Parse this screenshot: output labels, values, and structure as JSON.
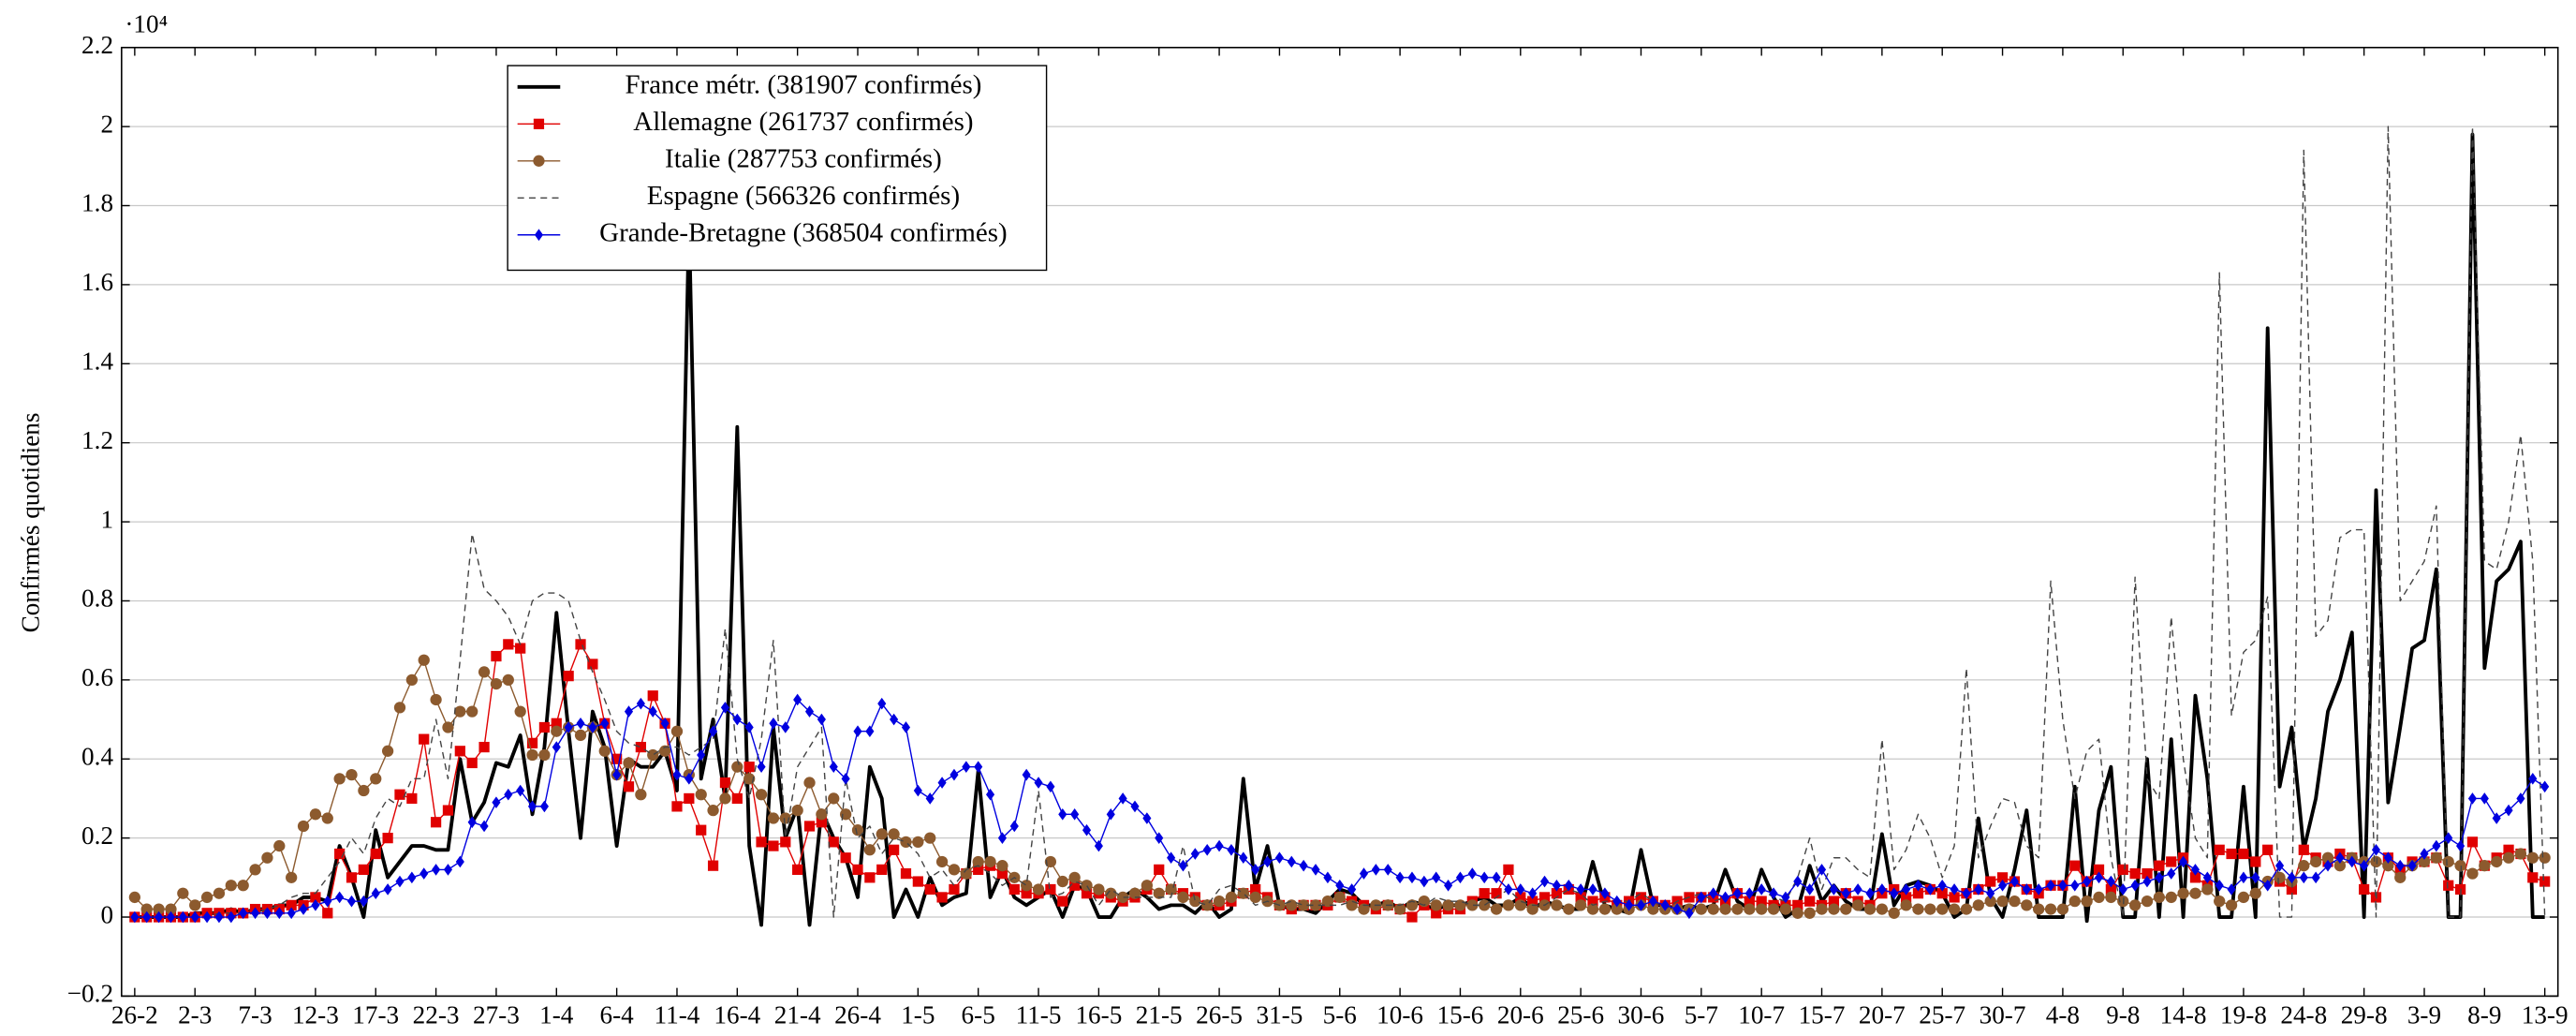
{
  "chart_data": {
    "type": "line",
    "y_label": "Confirmés quotidiens",
    "y_multiplier": "·10⁴",
    "ylim": [
      -0.2,
      2.2
    ],
    "yticks": [
      {
        "value": -0.2,
        "label": "−0.2"
      },
      0,
      0.2,
      0.4,
      0.6,
      0.8,
      1,
      1.2,
      1.4,
      1.6,
      1.8,
      2,
      2.2
    ],
    "grid": true,
    "legend": "upper left",
    "categories": [
      "26-2",
      null,
      null,
      null,
      null,
      "2-3",
      null,
      null,
      null,
      null,
      "7-3",
      null,
      null,
      null,
      null,
      "12-3",
      null,
      null,
      null,
      null,
      "17-3",
      null,
      null,
      null,
      null,
      "22-3",
      null,
      null,
      null,
      null,
      "27-3",
      null,
      null,
      null,
      null,
      "1-4",
      null,
      null,
      null,
      null,
      "6-4",
      null,
      null,
      null,
      null,
      "11-4",
      null,
      null,
      null,
      null,
      "16-4",
      null,
      null,
      null,
      null,
      "21-4",
      null,
      null,
      null,
      null,
      "26-4",
      null,
      null,
      null,
      null,
      "1-5",
      null,
      null,
      null,
      null,
      "6-5",
      null,
      null,
      null,
      null,
      "11-5",
      null,
      null,
      null,
      null,
      "16-5",
      null,
      null,
      null,
      null,
      "21-5",
      null,
      null,
      null,
      null,
      "26-5",
      null,
      null,
      null,
      null,
      "31-5",
      null,
      null,
      null,
      null,
      "5-6",
      null,
      null,
      null,
      null,
      "10-6",
      null,
      null,
      null,
      null,
      "15-6",
      null,
      null,
      null,
      null,
      "20-6",
      null,
      null,
      null,
      null,
      "25-6",
      null,
      null,
      null,
      null,
      "30-6",
      null,
      null,
      null,
      null,
      "5-7",
      null,
      null,
      null,
      null,
      "10-7",
      null,
      null,
      null,
      null,
      "15-7",
      null,
      null,
      null,
      null,
      "20-7",
      null,
      null,
      null,
      null,
      "25-7",
      null,
      null,
      null,
      null,
      "30-7",
      null,
      null,
      null,
      null,
      "4-8",
      null,
      null,
      null,
      null,
      "9-8",
      null,
      null,
      null,
      null,
      "14-8",
      null,
      null,
      null,
      null,
      "19-8",
      null,
      null,
      null,
      null,
      "24-8",
      null,
      null,
      null,
      null,
      "29-8",
      null,
      null,
      null,
      null,
      "3-9",
      null,
      null,
      null,
      null,
      "8-9",
      null,
      null,
      null,
      null,
      "13-9"
    ],
    "series": [
      {
        "name": "France métr. (381907 confirmés)",
        "color": "#000000",
        "width": 2.2,
        "dash": false,
        "marker": "none",
        "values": [
          0,
          0,
          0,
          0,
          0,
          0.01,
          0.01,
          0.01,
          0.02,
          0.01,
          0.02,
          0.02,
          0.03,
          0.03,
          0.05,
          0.05,
          0.04,
          0.18,
          0.1,
          0,
          0.22,
          0.1,
          0.14,
          0.18,
          0.18,
          0.17,
          0.17,
          0.4,
          0.24,
          0.29,
          0.39,
          0.38,
          0.46,
          0.26,
          0.43,
          0.77,
          0.47,
          0.2,
          0.52,
          0.43,
          0.18,
          0.4,
          0.38,
          0.38,
          0.42,
          0.32,
          1.76,
          0.35,
          0.5,
          0.3,
          1.24,
          0.18,
          -0.02,
          0.48,
          0.2,
          0.28,
          -0.02,
          0.27,
          0.2,
          0.15,
          0.05,
          0.38,
          0.3,
          0,
          0.07,
          0,
          0.1,
          0.03,
          0.05,
          0.06,
          0.37,
          0.05,
          0.12,
          0.05,
          0.03,
          0.05,
          0.07,
          0,
          0.08,
          0.07,
          0,
          0,
          0.05,
          0.07,
          0.05,
          0.02,
          0.03,
          0.03,
          0.01,
          0.04,
          0,
          0.02,
          0.35,
          0.07,
          0.18,
          0.03,
          0.02,
          0.02,
          0.01,
          0.04,
          0.07,
          0.06,
          0.03,
          0.03,
          0.04,
          0.02,
          0.04,
          0.03,
          0.02,
          0.03,
          0.03,
          0.04,
          0.05,
          0.03,
          0.03,
          0.05,
          0.02,
          0.04,
          0.03,
          0.02,
          0.02,
          0.14,
          0.03,
          0.02,
          0.01,
          0.17,
          0.03,
          0.03,
          0.02,
          0.03,
          0.02,
          0.03,
          0.12,
          0.04,
          0.02,
          0.12,
          0.05,
          0,
          0.02,
          0.13,
          0.04,
          0.08,
          0.04,
          0.02,
          0.02,
          0.21,
          0.03,
          0.08,
          0.09,
          0.08,
          0.06,
          0,
          0.02,
          0.25,
          0.05,
          0,
          0.12,
          0.27,
          0,
          0,
          0,
          0.33,
          -0.01,
          0.27,
          0.38,
          0,
          0,
          0.4,
          0,
          0.45,
          0,
          0.56,
          0.35,
          0,
          0,
          0.33,
          0,
          1.49,
          0.33,
          0.48,
          0.17,
          0.3,
          0.52,
          0.6,
          0.72,
          0,
          1.08,
          0.29,
          0.48,
          0.68,
          0.7,
          0.88,
          0,
          0,
          1.98,
          0.63,
          0.85,
          0.88,
          0.95,
          0,
          0
        ]
      },
      {
        "name": "Allemagne (261737 confirmés)",
        "color": "#e00000",
        "width": 0.8,
        "dash": false,
        "marker": "square",
        "values": [
          0,
          0,
          0,
          0,
          0,
          0,
          0.01,
          0.01,
          0.01,
          0.01,
          0.02,
          0.02,
          0.02,
          0.03,
          0.03,
          0.05,
          0.01,
          0.16,
          0.1,
          0.12,
          0.16,
          0.2,
          0.31,
          0.3,
          0.45,
          0.24,
          0.27,
          0.42,
          0.39,
          0.43,
          0.66,
          0.69,
          0.68,
          0.44,
          0.48,
          0.49,
          0.61,
          0.69,
          0.64,
          0.49,
          0.4,
          0.33,
          0.43,
          0.56,
          0.49,
          0.28,
          0.3,
          0.22,
          0.13,
          0.34,
          0.3,
          0.38,
          0.19,
          0.18,
          0.19,
          0.12,
          0.23,
          0.24,
          0.19,
          0.15,
          0.12,
          0.1,
          0.12,
          0.17,
          0.11,
          0.09,
          0.07,
          0.05,
          0.07,
          0.11,
          0.12,
          0.13,
          0.11,
          0.07,
          0.06,
          0.06,
          0.07,
          0.04,
          0.08,
          0.06,
          0.06,
          0.05,
          0.04,
          0.05,
          0.07,
          0.12,
          0.07,
          0.06,
          0.05,
          0.03,
          0.03,
          0.04,
          0.06,
          0.07,
          0.05,
          0.03,
          0.02,
          0.03,
          0.03,
          0.03,
          0.05,
          0.04,
          0.03,
          0.02,
          0.03,
          0.02,
          0,
          0.03,
          0.01,
          0.02,
          0.02,
          0.04,
          0.06,
          0.06,
          0.12,
          0.05,
          0.04,
          0.05,
          0.06,
          0.07,
          0.05,
          0.04,
          0.05,
          0.03,
          0.04,
          0.05,
          0.04,
          0.03,
          0.04,
          0.05,
          0.05,
          0.05,
          0.04,
          0.06,
          0.04,
          0.04,
          0.03,
          0.03,
          0.03,
          0.04,
          0.03,
          0.04,
          0.06,
          0.04,
          0.03,
          0.06,
          0.07,
          0.05,
          0.06,
          0.07,
          0.06,
          0.05,
          0.06,
          0.07,
          0.09,
          0.1,
          0.09,
          0.07,
          0.06,
          0.08,
          0.08,
          0.13,
          0.09,
          0.12,
          0.07,
          0.12,
          0.11,
          0.11,
          0.13,
          0.14,
          0.15,
          0.1,
          0.08,
          0.17,
          0.16,
          0.16,
          0.14,
          0.17,
          0.09,
          0.07,
          0.17,
          0.15,
          0.14,
          0.16,
          0.15,
          0.07,
          0.05,
          0.15,
          0.12,
          0.14,
          0.14,
          0.15,
          0.08,
          0.07,
          0.19,
          0.13,
          0.15,
          0.17,
          0.16,
          0.1,
          0.09
        ]
      },
      {
        "name": "Italie (287753 confirmés)",
        "color": "#8c5a2e",
        "width": 0.8,
        "dash": false,
        "marker": "circle",
        "values": [
          0.05,
          0.02,
          0.02,
          0.02,
          0.06,
          0.03,
          0.05,
          0.06,
          0.08,
          0.08,
          0.12,
          0.15,
          0.18,
          0.1,
          0.23,
          0.26,
          0.25,
          0.35,
          0.36,
          0.32,
          0.35,
          0.42,
          0.53,
          0.6,
          0.65,
          0.55,
          0.48,
          0.52,
          0.52,
          0.62,
          0.59,
          0.6,
          0.52,
          0.41,
          0.41,
          0.47,
          0.48,
          0.46,
          0.48,
          0.42,
          0.36,
          0.39,
          0.31,
          0.41,
          0.42,
          0.47,
          0.36,
          0.31,
          0.27,
          0.3,
          0.38,
          0.35,
          0.31,
          0.25,
          0.25,
          0.27,
          0.34,
          0.26,
          0.3,
          0.26,
          0.22,
          0.17,
          0.21,
          0.21,
          0.19,
          0.19,
          0.2,
          0.14,
          0.12,
          0.11,
          0.14,
          0.14,
          0.13,
          0.1,
          0.08,
          0.07,
          0.14,
          0.09,
          0.1,
          0.08,
          0.07,
          0.06,
          0.05,
          0.06,
          0.08,
          0.06,
          0.07,
          0.05,
          0.04,
          0.03,
          0.04,
          0.05,
          0.06,
          0.05,
          0.04,
          0.03,
          0.03,
          0.03,
          0.03,
          0.04,
          0.05,
          0.03,
          0.02,
          0.03,
          0.03,
          0.02,
          0.03,
          0.04,
          0.03,
          0.03,
          0.03,
          0.03,
          0.03,
          0.02,
          0.03,
          0.03,
          0.02,
          0.03,
          0.03,
          0.02,
          0.03,
          0.02,
          0.02,
          0.02,
          0.02,
          0.03,
          0.02,
          0.02,
          0.02,
          0.02,
          0.02,
          0.02,
          0.02,
          0.02,
          0.02,
          0.02,
          0.02,
          0.02,
          0.01,
          0.01,
          0.02,
          0.02,
          0.02,
          0.03,
          0.02,
          0.02,
          0.01,
          0.03,
          0.02,
          0.02,
          0.02,
          0.02,
          0.02,
          0.03,
          0.04,
          0.04,
          0.04,
          0.03,
          0.02,
          0.02,
          0.02,
          0.04,
          0.04,
          0.05,
          0.05,
          0.04,
          0.03,
          0.04,
          0.05,
          0.05,
          0.06,
          0.06,
          0.07,
          0.04,
          0.03,
          0.05,
          0.06,
          0.09,
          0.1,
          0.09,
          0.13,
          0.14,
          0.15,
          0.13,
          0.15,
          0.14,
          0.14,
          0.13,
          0.1,
          0.13,
          0.14,
          0.15,
          0.14,
          0.13,
          0.11,
          0.13,
          0.14,
          0.15,
          0.16,
          0.15,
          0.15
        ]
      },
      {
        "name": "Espagne (566326 confirmés)",
        "color": "#444444",
        "width": 0.8,
        "dash": true,
        "marker": "none",
        "values": [
          0,
          0,
          0,
          0,
          0,
          0,
          0,
          0.01,
          0.01,
          0.01,
          0.01,
          0.02,
          0.03,
          0.05,
          0.06,
          0.06,
          0.1,
          0.14,
          0.2,
          0.16,
          0.25,
          0.3,
          0.28,
          0.35,
          0.35,
          0.5,
          0.35,
          0.65,
          0.97,
          0.83,
          0.8,
          0.76,
          0.69,
          0.8,
          0.82,
          0.82,
          0.8,
          0.7,
          0.62,
          0.55,
          0.47,
          0.44,
          0.43,
          0.41,
          0.43,
          0.43,
          0.41,
          0.43,
          0.45,
          0.73,
          0.4,
          0.3,
          0.45,
          0.7,
          0.2,
          0.38,
          0.43,
          0.48,
          0,
          0.35,
          0.2,
          0.23,
          0.16,
          0.2,
          0.19,
          0.16,
          0.1,
          0.12,
          0.08,
          0.12,
          0.13,
          0.11,
          0.08,
          0.1,
          0.08,
          0.32,
          0.05,
          0.06,
          0.09,
          0.08,
          0.03,
          0.07,
          0.05,
          0.05,
          0.05,
          0.05,
          0.05,
          0.18,
          0.04,
          0.03,
          0.07,
          0.08,
          0.06,
          0.03,
          0.04,
          0.03,
          0.04,
          0.03,
          0.03,
          0.03,
          0.03,
          0.04,
          0.03,
          0.03,
          0.03,
          0.03,
          0.04,
          0.03,
          0.05,
          0.04,
          0.04,
          0.03,
          0.03,
          0.05,
          0.07,
          0.04,
          0.03,
          0.03,
          0.05,
          0.07,
          0.06,
          0.03,
          0.04,
          0.04,
          0.04,
          0.06,
          0.04,
          0.02,
          0.04,
          0.05,
          0.06,
          0.04,
          0.05,
          0.06,
          0.06,
          0.07,
          0.05,
          0.04,
          0.1,
          0.2,
          0.07,
          0.15,
          0.15,
          0.12,
          0.1,
          0.45,
          0.12,
          0.17,
          0.26,
          0.2,
          0.1,
          0.18,
          0.63,
          0.15,
          0.23,
          0.3,
          0.29,
          0.18,
          0.15,
          0.85,
          0.5,
          0.3,
          0.42,
          0.45,
          0.15,
          0,
          0.86,
          0.35,
          0.3,
          0.76,
          0.4,
          0.2,
          0.15,
          1.63,
          0.51,
          0.67,
          0.7,
          0.81,
          0,
          0,
          1.94,
          0.71,
          0.75,
          0.96,
          0.98,
          0.98,
          0,
          2,
          0.8,
          0.85,
          0.9,
          1.04,
          0,
          0,
          2,
          0.9,
          0.88,
          1,
          1.22,
          0.9,
          0
        ]
      },
      {
        "name": "Grande-Bretagne (368504 confirmés)",
        "color": "#0000e0",
        "width": 0.8,
        "dash": false,
        "marker": "diamond",
        "values": [
          0,
          0,
          0,
          0,
          0,
          0,
          0,
          0,
          0,
          0.01,
          0.01,
          0.01,
          0.01,
          0.01,
          0.02,
          0.03,
          0.04,
          0.05,
          0.04,
          0.04,
          0.06,
          0.07,
          0.09,
          0.1,
          0.11,
          0.12,
          0.12,
          0.14,
          0.24,
          0.23,
          0.29,
          0.31,
          0.32,
          0.28,
          0.28,
          0.43,
          0.48,
          0.49,
          0.48,
          0.49,
          0.36,
          0.52,
          0.54,
          0.52,
          0.49,
          0.36,
          0.35,
          0.41,
          0.47,
          0.53,
          0.5,
          0.48,
          0.38,
          0.49,
          0.48,
          0.55,
          0.52,
          0.5,
          0.38,
          0.35,
          0.47,
          0.47,
          0.54,
          0.5,
          0.48,
          0.32,
          0.3,
          0.34,
          0.36,
          0.38,
          0.38,
          0.31,
          0.2,
          0.23,
          0.36,
          0.34,
          0.33,
          0.26,
          0.26,
          0.22,
          0.18,
          0.26,
          0.3,
          0.28,
          0.25,
          0.2,
          0.15,
          0.13,
          0.16,
          0.17,
          0.18,
          0.17,
          0.15,
          0.12,
          0.14,
          0.15,
          0.14,
          0.13,
          0.12,
          0.1,
          0.08,
          0.07,
          0.11,
          0.12,
          0.12,
          0.1,
          0.1,
          0.09,
          0.1,
          0.08,
          0.1,
          0.11,
          0.1,
          0.1,
          0.07,
          0.07,
          0.06,
          0.09,
          0.08,
          0.08,
          0.07,
          0.07,
          0.06,
          0.04,
          0.03,
          0.03,
          0.04,
          0.03,
          0.02,
          0.01,
          0.05,
          0.06,
          0.05,
          0.06,
          0.06,
          0.07,
          0.06,
          0.05,
          0.09,
          0.07,
          0.12,
          0.07,
          0.06,
          0.07,
          0.06,
          0.07,
          0.06,
          0.07,
          0.08,
          0.07,
          0.08,
          0.07,
          0.06,
          0.07,
          0.06,
          0.08,
          0.09,
          0.07,
          0.07,
          0.08,
          0.08,
          0.08,
          0.09,
          0.1,
          0.09,
          0.07,
          0.08,
          0.09,
          0.1,
          0.11,
          0.14,
          0.12,
          0.1,
          0.08,
          0.07,
          0.1,
          0.1,
          0.08,
          0.13,
          0.1,
          0.1,
          0.1,
          0.13,
          0.15,
          0.14,
          0.13,
          0.17,
          0.15,
          0.13,
          0.13,
          0.16,
          0.18,
          0.2,
          0.18,
          0.3,
          0.3,
          0.25,
          0.27,
          0.3,
          0.35,
          0.33
        ]
      }
    ]
  }
}
